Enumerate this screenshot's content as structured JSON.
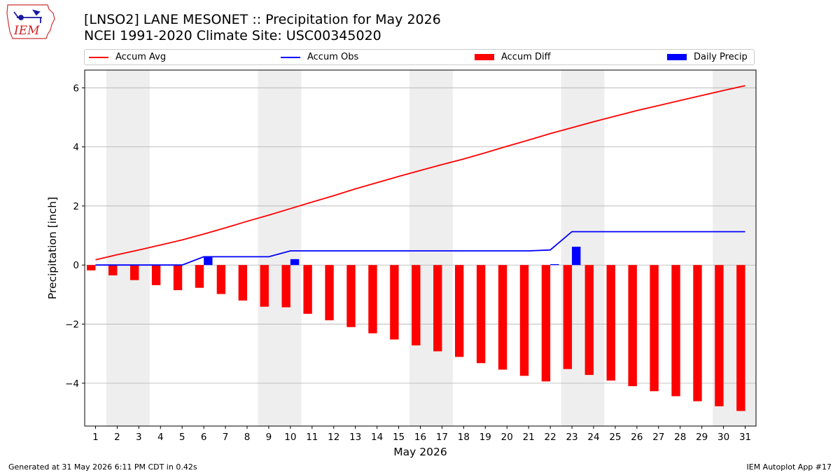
{
  "logo": {
    "text": "IEM"
  },
  "header": {
    "title": "[LNSO2] LANE MESONET :: Precipitation for May 2026",
    "subtitle": "NCEI 1991-2020 Climate Site: USC00345020"
  },
  "footer": {
    "left": "Generated at 31 May 2026 6:11 PM CDT in 0.42s",
    "right": "IEM Autoplot App #17"
  },
  "colors": {
    "accum_avg": "#ff0000",
    "accum_obs": "#0000ff",
    "accum_diff": "#ff0000",
    "daily_precip": "#0000ff",
    "weekend_shade": "#eeeeee",
    "grid": "#b0b0b0"
  },
  "chart_data": {
    "type": "line",
    "xlabel": "May 2026",
    "ylabel": "Precipitation [inch]",
    "xlim": [
      0.5,
      31.5
    ],
    "ylim": [
      -5.45,
      6.6
    ],
    "yticks": [
      -4,
      -2,
      0,
      2,
      4,
      6
    ],
    "ytick_labels": [
      "−4",
      "−2",
      "0",
      "2",
      "4",
      "6"
    ],
    "x": [
      1,
      2,
      3,
      4,
      5,
      6,
      7,
      8,
      9,
      10,
      11,
      12,
      13,
      14,
      15,
      16,
      17,
      18,
      19,
      20,
      21,
      22,
      23,
      24,
      25,
      26,
      27,
      28,
      29,
      30,
      31
    ],
    "grid": "horizontal",
    "legend_position": "top",
    "weekend_shading": [
      [
        2,
        3
      ],
      [
        9,
        10
      ],
      [
        16,
        17
      ],
      [
        23,
        24
      ],
      [
        30,
        31
      ]
    ],
    "series": [
      {
        "name": "Accum Avg",
        "kind": "line",
        "values": [
          0.18,
          0.35,
          0.51,
          0.68,
          0.85,
          1.05,
          1.26,
          1.48,
          1.69,
          1.91,
          2.13,
          2.35,
          2.58,
          2.79,
          3.0,
          3.2,
          3.4,
          3.59,
          3.8,
          4.02,
          4.23,
          4.45,
          4.65,
          4.85,
          5.04,
          5.23,
          5.4,
          5.57,
          5.74,
          5.91,
          6.07
        ]
      },
      {
        "name": "Accum Obs",
        "kind": "line",
        "values": [
          0,
          0,
          0,
          0,
          0,
          0.28,
          0.28,
          0.28,
          0.28,
          0.48,
          0.48,
          0.48,
          0.48,
          0.48,
          0.48,
          0.48,
          0.48,
          0.48,
          0.48,
          0.48,
          0.48,
          0.51,
          1.13,
          1.13,
          1.13,
          1.13,
          1.13,
          1.13,
          1.13,
          1.13,
          1.13
        ]
      },
      {
        "name": "Accum Diff",
        "kind": "bar",
        "values": [
          -0.18,
          -0.35,
          -0.51,
          -0.68,
          -0.85,
          -0.77,
          -0.98,
          -1.2,
          -1.41,
          -1.43,
          -1.65,
          -1.87,
          -2.1,
          -2.31,
          -2.52,
          -2.72,
          -2.92,
          -3.11,
          -3.32,
          -3.54,
          -3.75,
          -3.94,
          -3.52,
          -3.72,
          -3.91,
          -4.1,
          -4.27,
          -4.44,
          -4.61,
          -4.78,
          -4.94
        ]
      },
      {
        "name": "Daily Precip",
        "kind": "bar",
        "values": [
          0,
          0,
          0,
          0,
          0,
          0.28,
          0,
          0,
          0,
          0.2,
          0,
          0,
          0,
          0,
          0,
          0,
          0,
          0,
          0,
          0,
          0,
          0.03,
          0.62,
          0,
          0,
          0,
          0,
          0,
          0,
          0,
          0
        ]
      }
    ]
  }
}
